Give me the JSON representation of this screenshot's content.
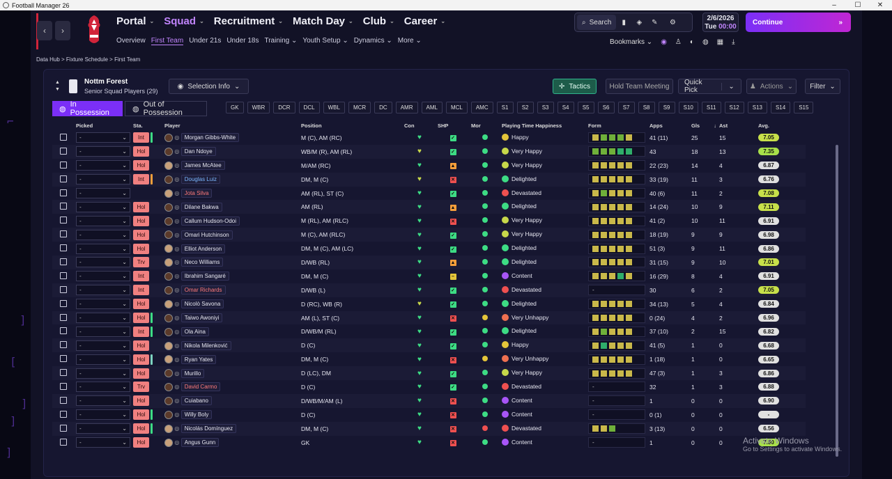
{
  "window": {
    "title": "Football Manager 26"
  },
  "nav": {
    "main": [
      "Portal",
      "Squad",
      "Recruitment",
      "Match Day",
      "Club",
      "Career"
    ],
    "sub": [
      "Overview",
      "First Team",
      "Under 21s",
      "Under 18s",
      "Training",
      "Youth Setup",
      "Dynamics",
      "More"
    ],
    "search": "Search",
    "bookmarks": "Bookmarks",
    "date": "2/6/2026",
    "day": "Tue",
    "time": "00:00",
    "continue": "Continue"
  },
  "breadcrumb": [
    "Data Hub",
    "Fixture Schedule",
    "First Team"
  ],
  "team": {
    "name": "Nottm Forest",
    "subtitle": "Senior Squad Players (29)"
  },
  "buttons": {
    "selection_info": "Selection Info",
    "tactics": "Tactics",
    "hold_team_meeting": "Hold Team Meeting",
    "quick_pick": "Quick Pick",
    "actions": "Actions",
    "filter": "Filter",
    "in_possession": "In Possession",
    "out_of_possession": "Out of Possession"
  },
  "positions": [
    "GK",
    "WBR",
    "DCR",
    "DCL",
    "WBL",
    "MCR",
    "DC",
    "AMR",
    "AML",
    "MCL",
    "AMC",
    "S1",
    "S2",
    "S3",
    "S4",
    "S5",
    "S6",
    "S7",
    "S8",
    "S9",
    "S10",
    "S11",
    "S12",
    "S13",
    "S14",
    "S15"
  ],
  "columns": {
    "picked": "Picked",
    "sta": "Sta.",
    "player": "Player",
    "position": "Position",
    "con": "Con",
    "shp": "SHP",
    "mor": "Mor",
    "ptl": "Playing Time Happiness",
    "form": "Form",
    "apps": "Apps",
    "gls": "Gls",
    "ast": "Ast",
    "avg": "Avg."
  },
  "players": [
    {
      "picked": "-",
      "sta": "Int",
      "stripe": "#3ddc84",
      "name": "Morgan Gibbs-White",
      "pos": "M (C), AM (RC)",
      "heart": "g",
      "shp": "g",
      "mor": "#3ddc84",
      "hap": "Happy",
      "hapc": "#e4c53a",
      "form": [
        "#c9b84a",
        "#6fb03a",
        "#6fb03a",
        "#6fb03a",
        "#c9b84a"
      ],
      "apps": "41 (11)",
      "gls": "25",
      "ast": "15",
      "avg": "7.05",
      "avgc": "#c7e04a",
      "light": false
    },
    {
      "picked": "-",
      "sta": "Hol",
      "stripe": "",
      "name": "Dan Ndoye",
      "pos": "WB/M (R), AM (RL)",
      "heart": "y",
      "shp": "g",
      "mor": "#3ddc84",
      "hap": "Very Happy",
      "hapc": "#c7d84a",
      "form": [
        "#6fb03a",
        "#6fb03a",
        "#6fb03a",
        "#2fae6a",
        "#2fae6a"
      ],
      "apps": "43",
      "gls": "18",
      "ast": "13",
      "avg": "7.35",
      "avgc": "#a8e04a",
      "light": false
    },
    {
      "picked": "-",
      "sta": "Hol",
      "stripe": "",
      "name": "James McAtee",
      "pos": "M/AM (RC)",
      "heart": "g",
      "shp": "o",
      "mor": "#3ddc84",
      "hap": "Very Happy",
      "hapc": "#c7d84a",
      "form": [
        "#c9b84a",
        "#c9b84a",
        "#c9b84a",
        "#c9b84a",
        "#c9b84a"
      ],
      "apps": "22 (23)",
      "gls": "14",
      "ast": "4",
      "avg": "6.87",
      "avgc": "#e0e0e0",
      "light": true
    },
    {
      "picked": "-",
      "sta": "Int",
      "stripe": "#f59e3b",
      "name": "Douglas Luiz",
      "pos": "DM, M (C)",
      "heart": "y",
      "shp": "r",
      "mor": "#3ddc84",
      "hap": "Delighted",
      "hapc": "#3ddc84",
      "form": [
        "#c9b84a",
        "#c9b84a",
        "#c9b84a",
        "#c9b84a",
        "#c9b84a"
      ],
      "apps": "33 (19)",
      "gls": "11",
      "ast": "3",
      "avg": "6.76",
      "avgc": "#e0e0e0",
      "light": false,
      "cls": "blue"
    },
    {
      "picked": "-",
      "sta": "",
      "stripe": "",
      "name": "Jota Silva",
      "pos": "AM (RL), ST (C)",
      "heart": "g",
      "shp": "g",
      "mor": "#3ddc84",
      "hap": "Devastated",
      "hapc": "#ef5050",
      "form": [
        "#c9b84a",
        "#6fb03a",
        "#c9b84a",
        "#c9b84a",
        "#c9b84a"
      ],
      "apps": "40 (6)",
      "gls": "11",
      "ast": "2",
      "avg": "7.08",
      "avgc": "#c7e04a",
      "light": true,
      "cls": "red"
    },
    {
      "picked": "-",
      "sta": "Hol",
      "stripe": "",
      "name": "Dilane Bakwa",
      "pos": "AM (RL)",
      "heart": "g",
      "shp": "o",
      "mor": "#3ddc84",
      "hap": "Delighted",
      "hapc": "#3ddc84",
      "form": [
        "#c9b84a",
        "#c9b84a",
        "#c9b84a",
        "#c9b84a",
        "#c9b84a"
      ],
      "apps": "14 (24)",
      "gls": "10",
      "ast": "9",
      "avg": "7.11",
      "avgc": "#c7e04a",
      "light": false
    },
    {
      "picked": "-",
      "sta": "Hol",
      "stripe": "",
      "name": "Callum Hudson-Odoi",
      "pos": "M (RL), AM (RLC)",
      "heart": "g",
      "shp": "r",
      "mor": "#3ddc84",
      "hap": "Very Happy",
      "hapc": "#c7d84a",
      "form": [
        "#c9b84a",
        "#c9b84a",
        "#c9b84a",
        "#c9b84a",
        "#c9b84a"
      ],
      "apps": "41 (2)",
      "gls": "10",
      "ast": "11",
      "avg": "6.91",
      "avgc": "#e0e0e0",
      "light": false
    },
    {
      "picked": "-",
      "sta": "Hol",
      "stripe": "",
      "name": "Omari Hutchinson",
      "pos": "M (C), AM (RLC)",
      "heart": "g",
      "shp": "g",
      "mor": "#3ddc84",
      "hap": "Very Happy",
      "hapc": "#c7d84a",
      "form": [
        "#c9b84a",
        "#c9b84a",
        "#c9b84a",
        "#c9b84a",
        "#c9b84a"
      ],
      "apps": "18 (19)",
      "gls": "9",
      "ast": "9",
      "avg": "6.98",
      "avgc": "#e0e0e0",
      "light": false
    },
    {
      "picked": "-",
      "sta": "Hol",
      "stripe": "",
      "name": "Elliot Anderson",
      "pos": "DM, M (C), AM (LC)",
      "heart": "g",
      "shp": "g",
      "mor": "#3ddc84",
      "hap": "Delighted",
      "hapc": "#3ddc84",
      "form": [
        "#c9b84a",
        "#c9b84a",
        "#c9b84a",
        "#c9b84a",
        "#c9b84a"
      ],
      "apps": "51 (3)",
      "gls": "9",
      "ast": "11",
      "avg": "6.86",
      "avgc": "#e0e0e0",
      "light": true
    },
    {
      "picked": "-",
      "sta": "Trv",
      "stripe": "",
      "name": "Neco Williams",
      "pos": "D/WB (RL)",
      "heart": "g",
      "shp": "o",
      "mor": "#3ddc84",
      "hap": "Delighted",
      "hapc": "#3ddc84",
      "form": [
        "#c9b84a",
        "#c9b84a",
        "#c9b84a",
        "#c9b84a",
        "#c9b84a"
      ],
      "apps": "31 (15)",
      "gls": "9",
      "ast": "10",
      "avg": "7.01",
      "avgc": "#c7e04a",
      "light": true
    },
    {
      "picked": "-",
      "sta": "Int",
      "stripe": "",
      "name": "Ibrahim Sangaré",
      "pos": "DM, M (C)",
      "heart": "g",
      "shp": "ye",
      "mor": "#3ddc84",
      "hap": "Content",
      "hapc": "#a855f7",
      "form": [
        "#c9b84a",
        "#c9b84a",
        "#c9b84a",
        "#2fae6a",
        "#c9b84a"
      ],
      "apps": "16 (29)",
      "gls": "8",
      "ast": "4",
      "avg": "6.91",
      "avgc": "#e0e0e0",
      "light": false
    },
    {
      "picked": "-",
      "sta": "Int",
      "stripe": "",
      "name": "Omar Richards",
      "pos": "D/WB (L)",
      "heart": "g",
      "shp": "g",
      "mor": "#3ddc84",
      "hap": "Devastated",
      "hapc": "#ef5050",
      "form": [],
      "apps": "30",
      "gls": "6",
      "ast": "2",
      "avg": "7.05",
      "avgc": "#c7e04a",
      "light": false,
      "cls": "red"
    },
    {
      "picked": "-",
      "sta": "Hol",
      "stripe": "",
      "name": "Nicolò Savona",
      "pos": "D (RC), WB (R)",
      "heart": "y",
      "shp": "g",
      "mor": "#3ddc84",
      "hap": "Delighted",
      "hapc": "#3ddc84",
      "form": [
        "#c9b84a",
        "#c9b84a",
        "#c9b84a",
        "#c9b84a",
        "#c9b84a"
      ],
      "apps": "34 (13)",
      "gls": "5",
      "ast": "4",
      "avg": "6.84",
      "avgc": "#e0e0e0",
      "light": true
    },
    {
      "picked": "-",
      "sta": "Hol",
      "stripe": "#3ddc84",
      "name": "Taiwo Awoniyi",
      "pos": "AM (L), ST (C)",
      "heart": "g",
      "shp": "r",
      "mor": "#e4c53a",
      "hap": "Very Unhappy",
      "hapc": "#ef7050",
      "form": [
        "#c9b84a",
        "#c9b84a",
        "#c9b84a",
        "#c9b84a",
        "#c9b84a"
      ],
      "apps": "0 (24)",
      "gls": "4",
      "ast": "2",
      "avg": "6.96",
      "avgc": "#e0e0e0",
      "light": false
    },
    {
      "picked": "-",
      "sta": "Int",
      "stripe": "#3ddc84",
      "name": "Ola Aina",
      "pos": "D/WB/M (RL)",
      "heart": "g",
      "shp": "g",
      "mor": "#3ddc84",
      "hap": "Delighted",
      "hapc": "#3ddc84",
      "form": [
        "#c9b84a",
        "#6fb03a",
        "#c9b84a",
        "#c9b84a",
        "#c9b84a"
      ],
      "apps": "37 (10)",
      "gls": "2",
      "ast": "15",
      "avg": "6.82",
      "avgc": "#e0e0e0",
      "light": false
    },
    {
      "picked": "-",
      "sta": "Hol",
      "stripe": "",
      "name": "Nikola Milenković",
      "pos": "D (C)",
      "heart": "g",
      "shp": "g",
      "mor": "#3ddc84",
      "hap": "Happy",
      "hapc": "#e4c53a",
      "form": [
        "#c9b84a",
        "#2fae6a",
        "#c9b84a",
        "#c9b84a",
        "#c9b84a"
      ],
      "apps": "41 (5)",
      "gls": "1",
      "ast": "0",
      "avg": "6.68",
      "avgc": "#e0e0e0",
      "light": true
    },
    {
      "picked": "-",
      "sta": "Hol",
      "stripe": "#7dd3c0",
      "name": "Ryan Yates",
      "pos": "DM, M (C)",
      "heart": "g",
      "shp": "r",
      "mor": "#e4c53a",
      "hap": "Very Unhappy",
      "hapc": "#ef7050",
      "form": [
        "#c9b84a",
        "#c9b84a",
        "#c9b84a",
        "#c9b84a",
        "#c9b84a"
      ],
      "apps": "1 (18)",
      "gls": "1",
      "ast": "0",
      "avg": "6.65",
      "avgc": "#e0e0e0",
      "light": true
    },
    {
      "picked": "-",
      "sta": "Hol",
      "stripe": "",
      "name": "Murillo",
      "pos": "D (LC), DM",
      "heart": "g",
      "shp": "g",
      "mor": "#3ddc84",
      "hap": "Very Happy",
      "hapc": "#c7d84a",
      "form": [
        "#c9b84a",
        "#c9b84a",
        "#c9b84a",
        "#c9b84a",
        "#c9b84a"
      ],
      "apps": "47 (3)",
      "gls": "1",
      "ast": "3",
      "avg": "6.86",
      "avgc": "#e0e0e0",
      "light": false
    },
    {
      "picked": "-",
      "sta": "Trv",
      "stripe": "",
      "name": "David Carmo",
      "pos": "D (C)",
      "heart": "g",
      "shp": "g",
      "mor": "#3ddc84",
      "hap": "Devastated",
      "hapc": "#ef5050",
      "form": [],
      "apps": "32",
      "gls": "1",
      "ast": "3",
      "avg": "6.88",
      "avgc": "#e0e0e0",
      "light": false,
      "cls": "red"
    },
    {
      "picked": "-",
      "sta": "Hol",
      "stripe": "",
      "name": "Cuiabano",
      "pos": "D/WB/M/AM (L)",
      "heart": "g",
      "shp": "r",
      "mor": "#3ddc84",
      "hap": "Content",
      "hapc": "#a855f7",
      "form": [],
      "apps": "1",
      "gls": "0",
      "ast": "0",
      "avg": "6.90",
      "avgc": "#e0e0e0",
      "light": false
    },
    {
      "picked": "-",
      "sta": "Hol",
      "stripe": "#3ddc84",
      "name": "Willy Boly",
      "pos": "D (C)",
      "heart": "g",
      "shp": "r",
      "mor": "#3ddc84",
      "hap": "Content",
      "hapc": "#a855f7",
      "form": [],
      "apps": "0 (1)",
      "gls": "0",
      "ast": "0",
      "avg": "-",
      "avgc": "#e0e0e0",
      "light": false
    },
    {
      "picked": "-",
      "sta": "Hol",
      "stripe": "#3ddc84",
      "name": "Nicolás Domínguez",
      "pos": "DM, M (C)",
      "heart": "g",
      "shp": "r",
      "mor": "#ef5050",
      "hap": "Devastated",
      "hapc": "#ef5050",
      "form": [
        "#c9b84a",
        "#c9b84a",
        "#6fb03a"
      ],
      "apps": "3 (13)",
      "gls": "0",
      "ast": "0",
      "avg": "6.56",
      "avgc": "#e0e0e0",
      "light": true
    },
    {
      "picked": "-",
      "sta": "Hol",
      "stripe": "",
      "name": "Angus Gunn",
      "pos": "GK",
      "heart": "g",
      "shp": "r",
      "mor": "#3ddc84",
      "hap": "Content",
      "hapc": "#a855f7",
      "form": [],
      "apps": "1",
      "gls": "0",
      "ast": "0",
      "avg": "7.50",
      "avgc": "#a8e04a",
      "light": true
    }
  ],
  "watermark": {
    "line1": "Activate Windows",
    "line2": "Go to Settings to activate Windows."
  }
}
